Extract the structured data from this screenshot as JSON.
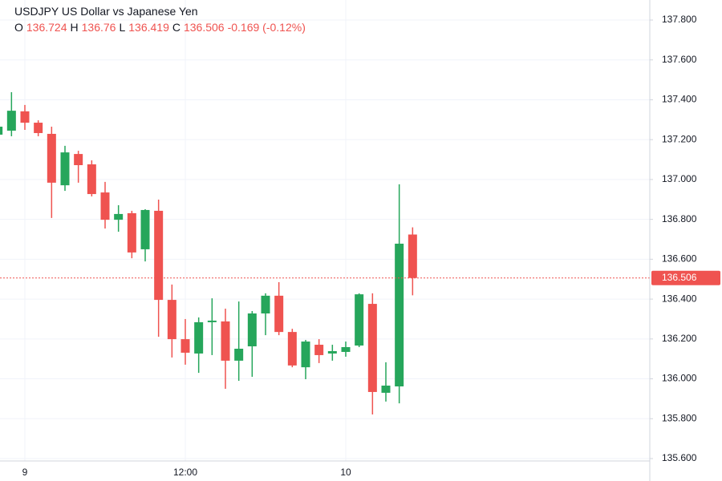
{
  "chart_data": {
    "type": "candlestick",
    "title": "USDJPY US Dollar vs Japanese Yen",
    "ohlc_labels": [
      "O",
      "H",
      "L",
      "C"
    ],
    "change": "-0.169 (-0.12%)",
    "categories": [
      null,
      null,
      "9",
      null,
      null,
      null,
      null,
      null,
      null,
      null,
      null,
      null,
      null,
      null,
      "12:00",
      null,
      null,
      null,
      null,
      null,
      null,
      null,
      null,
      null,
      null,
      null,
      "10",
      null,
      null,
      null,
      null,
      null
    ],
    "open": [
      137.225,
      137.245,
      137.342,
      137.285,
      137.229,
      136.971,
      137.128,
      137.076,
      136.935,
      136.798,
      136.831,
      136.65,
      136.843,
      136.396,
      136.199,
      136.127,
      136.284,
      136.288,
      136.091,
      136.163,
      136.328,
      136.417,
      136.235,
      136.058,
      136.171,
      136.127,
      136.135,
      136.167,
      136.376,
      135.93,
      135.962,
      136.724
    ],
    "high": [
      137.28,
      137.438,
      137.374,
      137.297,
      137.265,
      137.169,
      137.144,
      137.096,
      136.988,
      136.871,
      136.843,
      136.851,
      136.899,
      136.473,
      136.3,
      136.308,
      136.404,
      136.352,
      136.388,
      136.34,
      136.429,
      136.485,
      136.251,
      136.195,
      136.199,
      136.171,
      136.187,
      136.429,
      136.429,
      136.083,
      136.976,
      136.76
    ],
    "low": [
      137.2,
      137.217,
      137.249,
      137.217,
      136.807,
      136.943,
      136.984,
      136.915,
      136.754,
      136.738,
      136.605,
      136.589,
      136.211,
      136.107,
      136.071,
      136.03,
      136.119,
      135.95,
      135.99,
      136.01,
      136.219,
      136.219,
      136.058,
      135.998,
      136.079,
      136.091,
      136.111,
      136.159,
      135.821,
      135.886,
      135.877,
      136.419
    ],
    "close": [
      137.265,
      137.345,
      137.285,
      137.233,
      136.984,
      137.136,
      137.072,
      136.927,
      136.798,
      136.827,
      136.634,
      136.847,
      136.396,
      136.199,
      136.131,
      136.284,
      136.292,
      136.091,
      136.151,
      136.328,
      136.417,
      136.235,
      136.067,
      136.187,
      136.119,
      136.139,
      136.159,
      136.424,
      135.934,
      135.966,
      136.678,
      136.506
    ],
    "up_color": "#26a65b",
    "down_color": "#ef5350",
    "ylim": [
      135.6,
      137.8
    ],
    "yticks": [
      {
        "value": 135.6,
        "label": "135.600"
      },
      {
        "value": 135.8,
        "label": "135.800"
      },
      {
        "value": 136.0,
        "label": "136.000"
      },
      {
        "value": 136.2,
        "label": "136.200"
      },
      {
        "value": 136.4,
        "label": "136.400"
      },
      {
        "value": 136.6,
        "label": "136.600"
      },
      {
        "value": 136.8,
        "label": "136.800"
      },
      {
        "value": 137.0,
        "label": "137.000"
      },
      {
        "value": 137.2,
        "label": "137.200"
      },
      {
        "value": 137.4,
        "label": "137.400"
      },
      {
        "value": 137.6,
        "label": "137.600"
      },
      {
        "value": 137.8,
        "label": "137.800"
      }
    ],
    "grid": true
  }
}
